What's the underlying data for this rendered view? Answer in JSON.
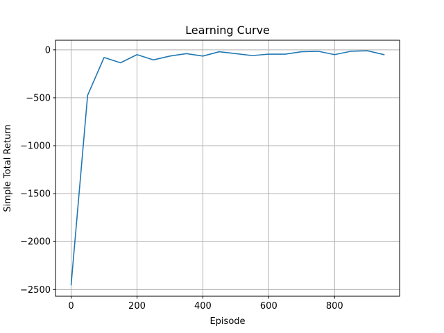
{
  "chart_data": {
    "type": "line",
    "title": "Learning Curve",
    "xlabel": "Episode",
    "ylabel": "Simple Total Return",
    "xlim": [
      -47.5,
      997.5
    ],
    "ylim": [
      -2570,
      100
    ],
    "xticks": [
      0,
      200,
      400,
      600,
      800
    ],
    "xtick_labels": [
      "0",
      "200",
      "400",
      "600",
      "800"
    ],
    "yticks": [
      0,
      -500,
      -1000,
      -1500,
      -2000,
      -2500
    ],
    "ytick_labels": [
      "0",
      "−500",
      "−1000",
      "−1500",
      "−2000",
      "−2500"
    ],
    "grid": true,
    "series": [
      {
        "color": "#1f77b4",
        "x": [
          0,
          50,
          100,
          150,
          200,
          250,
          300,
          350,
          400,
          450,
          500,
          550,
          600,
          650,
          700,
          750,
          800,
          850,
          900,
          950
        ],
        "y": [
          -2450,
          -475,
          -80,
          -135,
          -50,
          -105,
          -65,
          -40,
          -65,
          -20,
          -40,
          -60,
          -45,
          -45,
          -20,
          -15,
          -50,
          -15,
          -10,
          -50
        ]
      }
    ]
  }
}
